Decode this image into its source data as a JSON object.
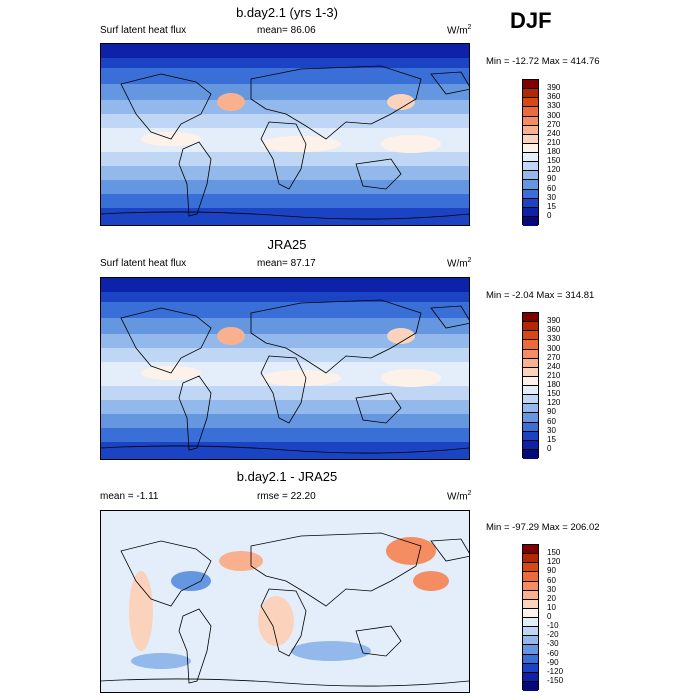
{
  "season": "DJF",
  "panels": [
    {
      "title": "b.day2.1 (yrs 1-3)",
      "left_label": "Surf latent heat flux",
      "center_label": "mean=  86.06",
      "units_base": "W/m",
      "units_exp": "2",
      "minmax": "Min = -12.72 Max = 414.76",
      "palette": "absolute",
      "colorbar_labels": [
        "390",
        "360",
        "330",
        "300",
        "270",
        "240",
        "210",
        "180",
        "150",
        "120",
        "90",
        "60",
        "30",
        "15",
        "0"
      ]
    },
    {
      "title": "JRA25",
      "left_label": "Surf latent heat flux",
      "center_label": "mean=  87.17",
      "units_base": "W/m",
      "units_exp": "2",
      "minmax": "Min =  -2.04 Max = 314.81",
      "palette": "absolute",
      "colorbar_labels": [
        "390",
        "360",
        "330",
        "300",
        "270",
        "240",
        "210",
        "180",
        "150",
        "120",
        "90",
        "60",
        "30",
        "15",
        "0"
      ]
    },
    {
      "title": "b.day2.1 - JRA25",
      "left_label": "mean =  -1.11",
      "center_label": "rmse =  22.20",
      "units_base": "W/m",
      "units_exp": "2",
      "minmax": "Min = -97.29 Max = 206.02",
      "palette": "difference",
      "colorbar_labels": [
        "150",
        "120",
        "90",
        "60",
        "30",
        "20",
        "10",
        "0",
        "-10",
        "-20",
        "-30",
        "-60",
        "-90",
        "-120",
        "-150"
      ]
    }
  ],
  "colors": {
    "absolute": [
      "#800000",
      "#b42800",
      "#d74812",
      "#ed6a3c",
      "#f58d63",
      "#f9b08e",
      "#fbd3bc",
      "#fdf2ea",
      "#e4eefb",
      "#bfd6f4",
      "#93b8eb",
      "#6596e0",
      "#3a6fd7",
      "#1a44c4",
      "#0d22a8",
      "#050a7a"
    ],
    "difference": [
      "#800000",
      "#b42800",
      "#d74812",
      "#ed6a3c",
      "#f58d63",
      "#f9b08e",
      "#fbd3bc",
      "#fdf2ea",
      "#e4eefb",
      "#bfd6f4",
      "#93b8eb",
      "#6596e0",
      "#3a6fd7",
      "#1a44c4",
      "#0d22a8",
      "#050a7a"
    ]
  },
  "chart_data": [
    {
      "type": "heatmap",
      "title": "b.day2.1 (yrs 1-3)",
      "variable": "Surf latent heat flux",
      "mean": 86.06,
      "min": -12.72,
      "max": 414.76,
      "units": "W/m2",
      "levels": [
        0,
        15,
        30,
        60,
        90,
        120,
        150,
        180,
        210,
        240,
        270,
        300,
        330,
        360,
        390
      ]
    },
    {
      "type": "heatmap",
      "title": "JRA25",
      "variable": "Surf latent heat flux",
      "mean": 87.17,
      "min": -2.04,
      "max": 314.81,
      "units": "W/m2",
      "levels": [
        0,
        15,
        30,
        60,
        90,
        120,
        150,
        180,
        210,
        240,
        270,
        300,
        330,
        360,
        390
      ]
    },
    {
      "type": "heatmap",
      "title": "b.day2.1 - JRA25",
      "mean": -1.11,
      "rmse": 22.2,
      "min": -97.29,
      "max": 206.02,
      "units": "W/m2",
      "levels": [
        -150,
        -120,
        -90,
        -60,
        -30,
        -20,
        -10,
        0,
        10,
        20,
        30,
        60,
        90,
        120,
        150
      ]
    }
  ]
}
